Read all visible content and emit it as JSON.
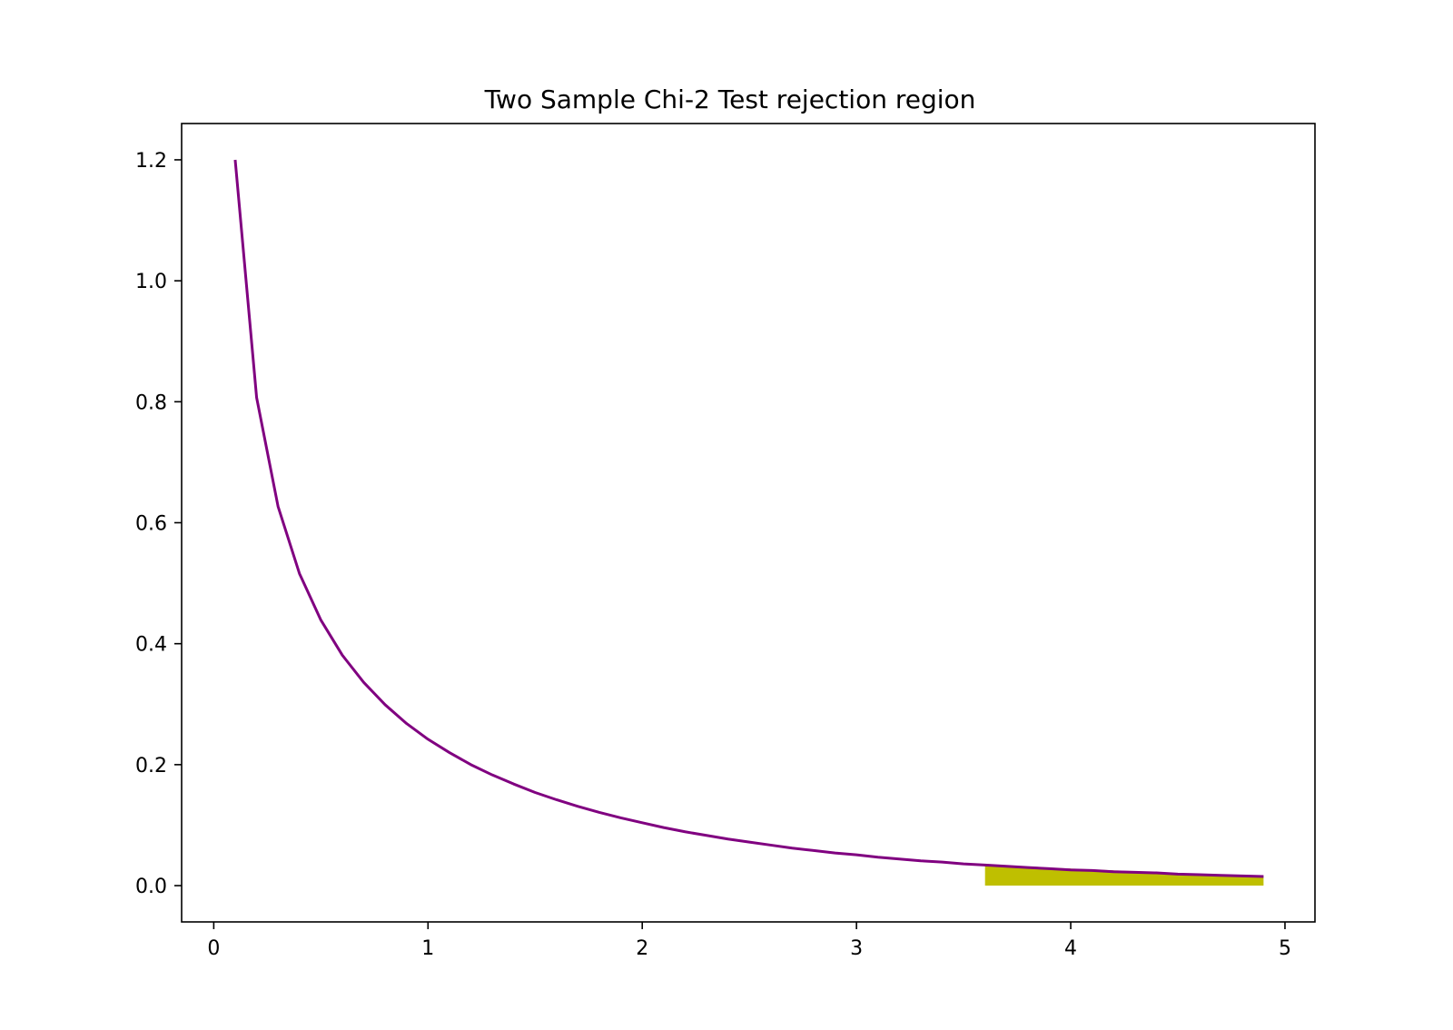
{
  "chart_data": {
    "type": "line",
    "title": "Two Sample Chi-2 Test rejection region",
    "xlabel": "",
    "ylabel": "",
    "xlim": [
      -0.15,
      5.14
    ],
    "ylim": [
      -0.06,
      1.26
    ],
    "xticks": [
      0,
      1,
      2,
      3,
      4,
      5
    ],
    "xtick_labels": [
      "0",
      "1",
      "2",
      "3",
      "4",
      "5"
    ],
    "yticks": [
      0.0,
      0.2,
      0.4,
      0.6,
      0.8,
      1.0,
      1.2
    ],
    "ytick_labels": [
      "0.0",
      "0.2",
      "0.4",
      "0.6",
      "0.8",
      "1.0",
      "1.2"
    ],
    "grid": false,
    "series": [
      {
        "color": "#800080",
        "x": [
          0.1,
          0.2,
          0.3,
          0.4,
          0.5,
          0.6,
          0.7,
          0.8,
          0.9,
          1.0,
          1.1,
          1.2,
          1.3,
          1.4,
          1.5,
          1.6,
          1.7,
          1.8,
          1.9,
          2.0,
          2.1,
          2.2,
          2.3,
          2.4,
          2.5,
          2.6,
          2.7,
          2.8,
          2.9,
          3.0,
          3.1,
          3.2,
          3.3,
          3.4,
          3.5,
          3.6,
          3.7,
          3.8,
          3.9,
          4.0,
          4.1,
          4.2,
          4.3,
          4.4,
          4.5,
          4.6,
          4.7,
          4.8,
          4.9
        ],
        "y": [
          1.2,
          0.807,
          0.627,
          0.516,
          0.439,
          0.381,
          0.336,
          0.299,
          0.268,
          0.242,
          0.22,
          0.2,
          0.183,
          0.168,
          0.154,
          0.142,
          0.131,
          0.121,
          0.112,
          0.104,
          0.096,
          0.089,
          0.083,
          0.077,
          0.072,
          0.067,
          0.062,
          0.058,
          0.054,
          0.051,
          0.047,
          0.044,
          0.041,
          0.039,
          0.036,
          0.034,
          0.032,
          0.03,
          0.028,
          0.026,
          0.025,
          0.023,
          0.022,
          0.021,
          0.019,
          0.018,
          0.017,
          0.016,
          0.015
        ]
      }
    ],
    "rejection_region": {
      "color": "#bfbf00",
      "x_start": 3.6,
      "x_end": 4.9,
      "y_top_start": 0.034,
      "y_top_end": 0.015
    }
  }
}
